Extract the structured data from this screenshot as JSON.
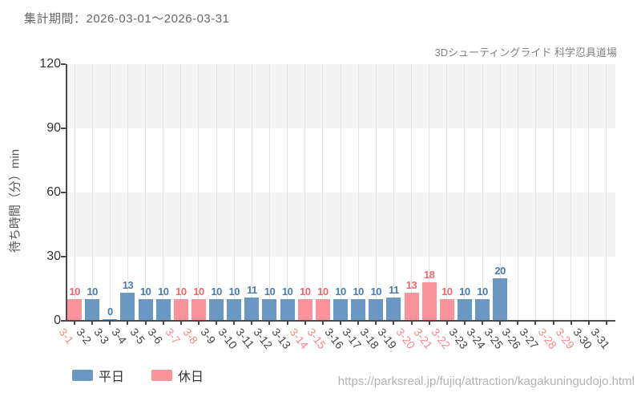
{
  "header": {
    "title": "集計期間：2026-03-01～2026-03-31",
    "subtitle": "3Dシューティングライド 科学忍具道場"
  },
  "footer": {
    "url": "https://parksreal.jp/fujiq/attraction/kagakuningudojo.html"
  },
  "legend": {
    "weekday_label": "平日",
    "holiday_label": "休日"
  },
  "colors": {
    "weekday_bar": "#6b98c2",
    "holiday_bar": "#fb949a",
    "weekday_value_label": "#4a7dab",
    "holiday_value_label": "#f2656d",
    "weekday_tick_label": "#444444",
    "holiday_tick_label": "#f8878e",
    "axis": "#4a4a4a",
    "band_gray": "#f4f4f4",
    "vertical_gridline": "#e3e3e3"
  },
  "chart_data": {
    "type": "bar",
    "title": "集計期間：2026-03-01～2026-03-31",
    "subtitle": "3Dシューティングライド 科学忍具道場",
    "xlabel": "",
    "ylabel": "待ち時間（分）min",
    "ylim": [
      0,
      120
    ],
    "yticks": [
      0,
      30,
      60,
      90,
      120
    ],
    "grid": "horizontal-bands-and-vertical-lines",
    "legend_position": "bottom-left",
    "categories": [
      "3-1",
      "3-2",
      "3-3",
      "3-4",
      "3-5",
      "3-6",
      "3-7",
      "3-8",
      "3-9",
      "3-10",
      "3-11",
      "3-12",
      "3-13",
      "3-14",
      "3-15",
      "3-16",
      "3-17",
      "3-18",
      "3-19",
      "3-20",
      "3-21",
      "3-22",
      "3-23",
      "3-24",
      "3-25",
      "3-26",
      "3-27",
      "3-28",
      "3-29",
      "3-30",
      "3-31"
    ],
    "values": [
      10,
      10,
      0,
      13,
      10,
      10,
      10,
      10,
      10,
      10,
      11,
      10,
      10,
      10,
      10,
      10,
      10,
      10,
      11,
      13,
      18,
      10,
      10,
      10,
      20,
      null,
      null,
      null,
      null,
      null,
      null
    ],
    "day_types": [
      "holiday",
      "weekday",
      "weekday",
      "weekday",
      "weekday",
      "weekday",
      "holiday",
      "holiday",
      "weekday",
      "weekday",
      "weekday",
      "weekday",
      "weekday",
      "holiday",
      "holiday",
      "weekday",
      "weekday",
      "weekday",
      "weekday",
      "holiday",
      "holiday",
      "holiday",
      "weekday",
      "weekday",
      "weekday",
      "weekday",
      "weekday",
      "holiday",
      "holiday",
      "weekday",
      "weekday"
    ],
    "legend": [
      {
        "label": "平日",
        "series": "weekday"
      },
      {
        "label": "休日",
        "series": "holiday"
      }
    ]
  }
}
